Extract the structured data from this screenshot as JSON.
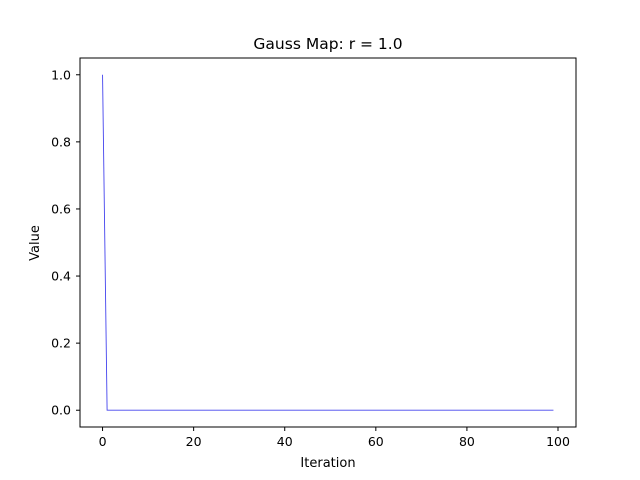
{
  "chart_data": {
    "type": "line",
    "title": "Gauss Map: r = 1.0",
    "xlabel": "Iteration",
    "ylabel": "Value",
    "xlim": [
      -4.95,
      103.95
    ],
    "ylim": [
      -0.05,
      1.05
    ],
    "xticks": [
      0,
      20,
      40,
      60,
      80,
      100
    ],
    "yticks": [
      0.0,
      0.2,
      0.4,
      0.6,
      0.8,
      1.0
    ],
    "xtick_labels": [
      "0",
      "20",
      "40",
      "60",
      "80",
      "100"
    ],
    "ytick_labels": [
      "0.0",
      "0.2",
      "0.4",
      "0.6",
      "0.8",
      "1.0"
    ],
    "grid": false,
    "series": [
      {
        "color": "#4444ee",
        "x_start": 0,
        "x_end": 99,
        "values": [
          1.0,
          0.0,
          0.0,
          0.0,
          0.0,
          0.0,
          0.0,
          0.0,
          0.0,
          0.0,
          0.0,
          0.0,
          0.0,
          0.0,
          0.0,
          0.0,
          0.0,
          0.0,
          0.0,
          0.0,
          0.0,
          0.0,
          0.0,
          0.0,
          0.0,
          0.0,
          0.0,
          0.0,
          0.0,
          0.0,
          0.0,
          0.0,
          0.0,
          0.0,
          0.0,
          0.0,
          0.0,
          0.0,
          0.0,
          0.0,
          0.0,
          0.0,
          0.0,
          0.0,
          0.0,
          0.0,
          0.0,
          0.0,
          0.0,
          0.0,
          0.0,
          0.0,
          0.0,
          0.0,
          0.0,
          0.0,
          0.0,
          0.0,
          0.0,
          0.0,
          0.0,
          0.0,
          0.0,
          0.0,
          0.0,
          0.0,
          0.0,
          0.0,
          0.0,
          0.0,
          0.0,
          0.0,
          0.0,
          0.0,
          0.0,
          0.0,
          0.0,
          0.0,
          0.0,
          0.0,
          0.0,
          0.0,
          0.0,
          0.0,
          0.0,
          0.0,
          0.0,
          0.0,
          0.0,
          0.0,
          0.0,
          0.0,
          0.0,
          0.0,
          0.0,
          0.0,
          0.0,
          0.0,
          0.0,
          0.0
        ]
      }
    ]
  }
}
